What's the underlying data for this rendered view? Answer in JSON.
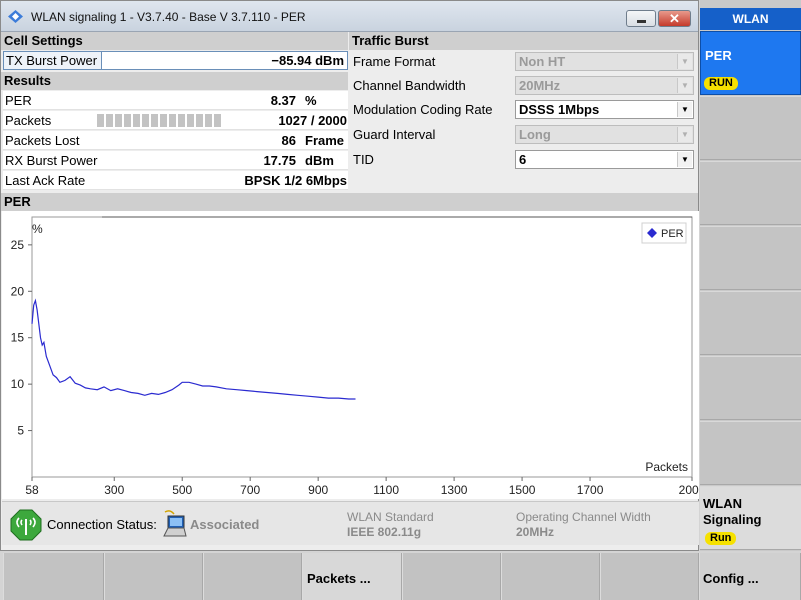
{
  "window": {
    "title": "WLAN signaling 1 - V3.7.40 - Base V 3.7.110 - PER",
    "close_glyph": "✕"
  },
  "cell_settings": {
    "heading": "Cell Settings",
    "tx_burst_power": {
      "label": "TX Burst  Power",
      "value": "−85.94 dBm"
    }
  },
  "results": {
    "heading": "Results",
    "per": {
      "label": "PER",
      "value": "8.37",
      "unit": "%"
    },
    "packets": {
      "label": "Packets",
      "value": "1027 / 2000",
      "progress_fraction": 0.51
    },
    "packets_lost": {
      "label": "Packets Lost",
      "value": "86",
      "unit": "Frame"
    },
    "rx_burst_power": {
      "label": "RX Burst Power",
      "value": "17.75",
      "unit": "dBm"
    },
    "last_ack_rate": {
      "label": "Last Ack Rate",
      "value": "BPSK 1/2 6Mbps"
    }
  },
  "traffic_burst": {
    "heading": "Traffic Burst",
    "fields": [
      {
        "label": "Frame Format",
        "value": "Non HT",
        "enabled": false
      },
      {
        "label": "Channel Bandwidth",
        "value": "20MHz",
        "enabled": false
      },
      {
        "label": "Modulation Coding Rate",
        "value": "DSSS 1Mbps",
        "enabled": true
      },
      {
        "label": "Guard Interval",
        "value": "Long",
        "enabled": false
      },
      {
        "label": "TID",
        "value": "6",
        "enabled": true
      }
    ]
  },
  "chart_section": {
    "heading": "PER"
  },
  "chart_data": {
    "type": "line",
    "title": "",
    "ylabel": "%",
    "xlabel": "Packets",
    "xlim": [
      58,
      2000
    ],
    "ylim": [
      0,
      28
    ],
    "x_ticks": [
      "58",
      "300",
      "500",
      "700",
      "900",
      "1100",
      "1300",
      "1500",
      "1700",
      "2000"
    ],
    "y_ticks": [
      "5",
      "10",
      "15",
      "20",
      "25"
    ],
    "legend_position": "top-right",
    "series": [
      {
        "name": "PER",
        "color": "#2a2ad0",
        "x": [
          58,
          63,
          68,
          73,
          78,
          83,
          88,
          93,
          100,
          110,
          120,
          130,
          140,
          155,
          170,
          185,
          200,
          215,
          230,
          250,
          270,
          290,
          310,
          330,
          350,
          370,
          390,
          410,
          430,
          450,
          470,
          490,
          500,
          520,
          540,
          560,
          580,
          600,
          630,
          660,
          690,
          720,
          750,
          780,
          810,
          840,
          870,
          900,
          930,
          960,
          990,
          1010
        ],
        "y": [
          16.5,
          18.5,
          19,
          18,
          16.5,
          15,
          14.2,
          14.5,
          13,
          12,
          11,
          10.7,
          10.2,
          10.4,
          10.8,
          10.1,
          9.9,
          9.6,
          9.5,
          9.4,
          9.7,
          9.3,
          9.5,
          9.3,
          9.1,
          9.0,
          8.8,
          9.0,
          8.9,
          9.1,
          9.4,
          9.9,
          10.2,
          10.2,
          10.0,
          9.8,
          9.8,
          9.7,
          9.5,
          9.4,
          9.3,
          9.2,
          9.1,
          9.0,
          8.9,
          8.8,
          8.7,
          8.6,
          8.5,
          8.5,
          8.4,
          8.4
        ]
      }
    ]
  },
  "status_bar": {
    "connection_label": "Connection Status:",
    "connection_value": "Associated",
    "standard_label": "WLAN Standard",
    "standard_value": "IEEE 802.11g",
    "channel_width_label": "Operating Channel Width",
    "channel_width_value": "20MHz"
  },
  "right_panel": {
    "header": "WLAN",
    "per_key": {
      "label": "PER",
      "badge": "RUN"
    },
    "signaling_key": {
      "label_line1": "WLAN",
      "label_line2": "Signaling",
      "badge": "Run"
    },
    "config_key": "Config ..."
  },
  "bottom_keys": {
    "packets": "Packets ..."
  },
  "colors": {
    "accent_blue": "#1e78f0",
    "run_badge": "#f6e100",
    "plot_line": "#2a2ad0",
    "status_icon": "#3da83d"
  }
}
